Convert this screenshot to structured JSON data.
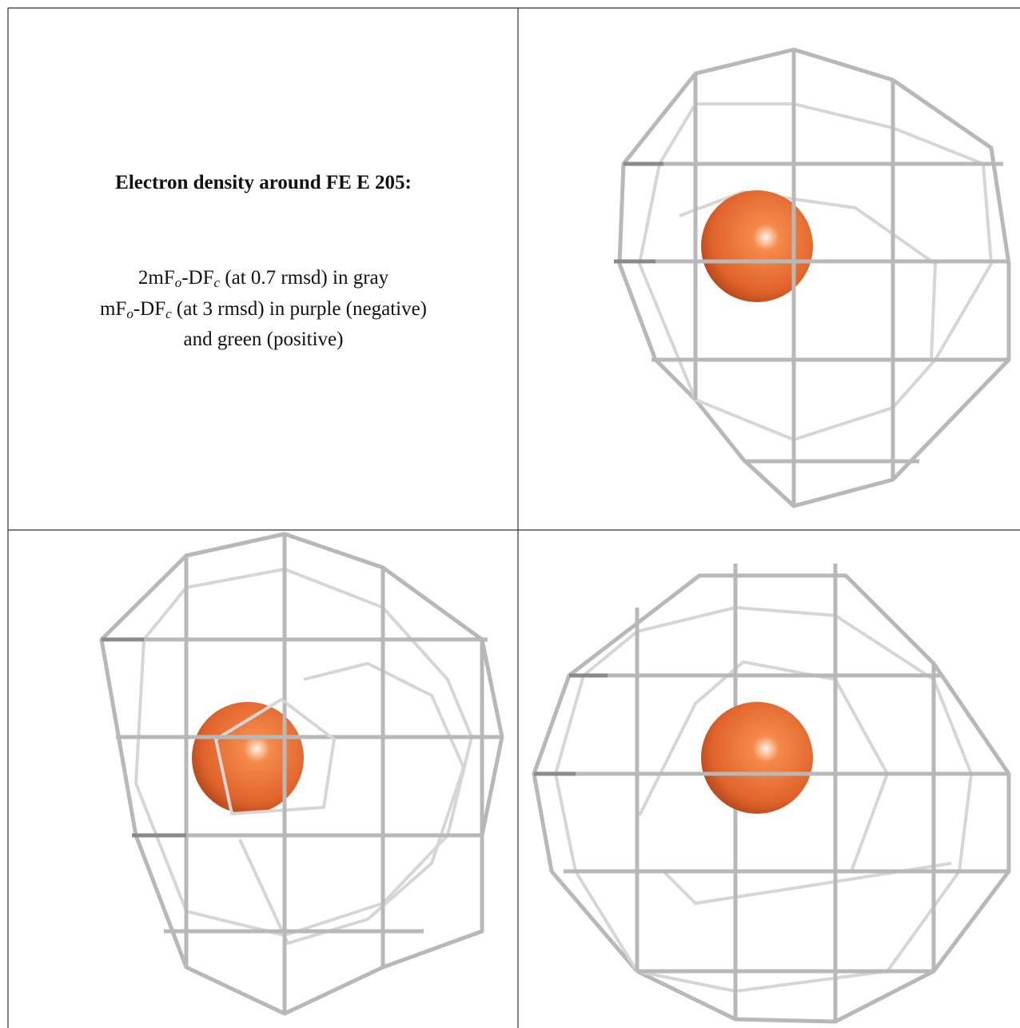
{
  "caption": {
    "title": "Electron density around FE E 205:",
    "lines": [
      [
        "2mF",
        "o",
        "-DF",
        "c",
        " (at 0.7 rmsd) in gray"
      ],
      [
        "mF",
        "o",
        "-DF",
        "c",
        " (at 3 rmsd) in purple (negative)"
      ],
      [
        "and green (positive)"
      ]
    ]
  }
}
